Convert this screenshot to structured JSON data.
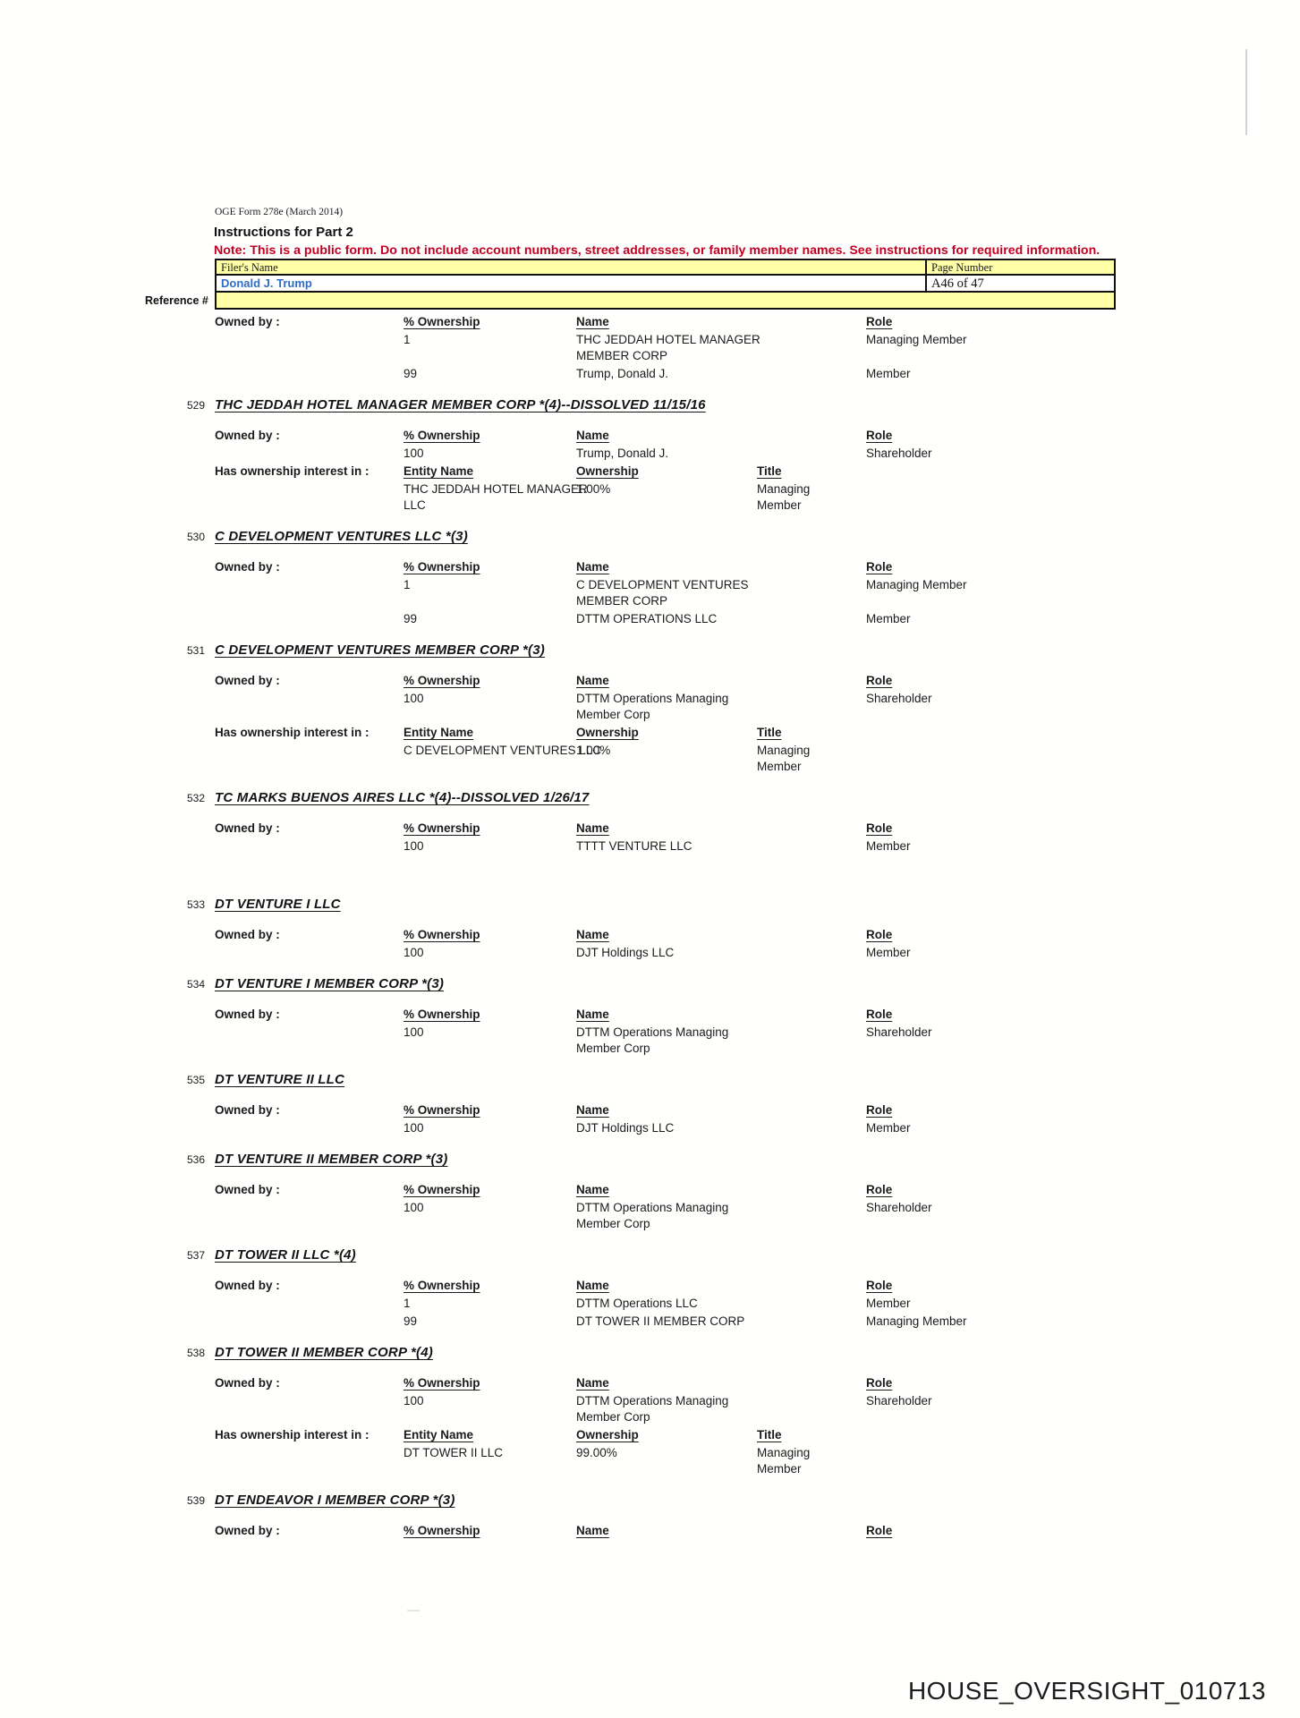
{
  "header": {
    "form_line": "OGE Form 278e (March 2014)",
    "instructions_line": "Instructions for Part 2",
    "note_line": "Note: This is a public form. Do not include account numbers, street addresses, or family member names.  See instructions for required information.",
    "filer_label": "Filer's Name",
    "filer_name": "Donald J. Trump",
    "page_label": "Page Number",
    "page_value": "A46 of 47",
    "reference_label": "Reference #"
  },
  "labels": {
    "owned_by": "Owned by :",
    "has_ownership": "Has ownership interest in :",
    "pct_ownership": "% Ownership",
    "name": "Name",
    "role": "Role",
    "entity_name": "Entity Name",
    "ownership": "Ownership",
    "title": "Title"
  },
  "colors": {
    "highlight_yellow": "#ffffa8",
    "filer_blue": "#2e6dc6",
    "note_red": "#c20023"
  },
  "sections": [
    {
      "number": "",
      "title": "",
      "owned_by": [
        {
          "pct": "1",
          "name": "THC JEDDAH HOTEL MANAGER\nMEMBER CORP",
          "role": "Managing Member"
        },
        {
          "pct": "99",
          "name": "Trump, Donald J.",
          "role": "Member"
        }
      ]
    },
    {
      "number": "529",
      "title": "THC JEDDAH HOTEL MANAGER MEMBER CORP *(4)--DISSOLVED 11/15/16",
      "owned_by": [
        {
          "pct": "100",
          "name": "Trump, Donald J.",
          "role": "Shareholder"
        }
      ],
      "has_ownership": {
        "entity": "THC JEDDAH HOTEL MANAGER\nLLC",
        "ownership": "1.00%",
        "title": "Managing\nMember"
      }
    },
    {
      "number": "530",
      "title": "C DEVELOPMENT VENTURES LLC *(3)",
      "owned_by": [
        {
          "pct": "1",
          "name": "C DEVELOPMENT VENTURES\nMEMBER CORP",
          "role": "Managing Member"
        },
        {
          "pct": "99",
          "name": "DTTM OPERATIONS LLC",
          "role": "Member"
        }
      ]
    },
    {
      "number": "531",
      "title": "C DEVELOPMENT VENTURES MEMBER CORP *(3)",
      "owned_by": [
        {
          "pct": "100",
          "name": "DTTM Operations Managing\nMember Corp",
          "role": "Shareholder"
        }
      ],
      "has_ownership": {
        "entity": "C DEVELOPMENT VENTURES LLC",
        "ownership": "1.00%",
        "title": "Managing\nMember"
      }
    },
    {
      "number": "532",
      "title": "TC MARKS BUENOS AIRES LLC *(4)--DISSOLVED 1/26/17",
      "extra_gap": true,
      "owned_by": [
        {
          "pct": "100",
          "name": "TTTT VENTURE LLC",
          "role": "Member"
        }
      ]
    },
    {
      "number": "533",
      "title": "DT VENTURE I LLC",
      "owned_by": [
        {
          "pct": "100",
          "name": "DJT Holdings LLC",
          "role": "Member"
        }
      ]
    },
    {
      "number": "534",
      "title": "DT VENTURE I MEMBER CORP *(3)",
      "owned_by": [
        {
          "pct": "100",
          "name": "DTTM Operations Managing\nMember Corp",
          "role": "Shareholder"
        }
      ]
    },
    {
      "number": "535",
      "title": "DT VENTURE II LLC",
      "owned_by": [
        {
          "pct": "100",
          "name": "DJT Holdings LLC",
          "role": "Member"
        }
      ]
    },
    {
      "number": "536",
      "title": "DT VENTURE II MEMBER CORP *(3)",
      "owned_by": [
        {
          "pct": "100",
          "name": "DTTM Operations Managing\nMember Corp",
          "role": "Shareholder"
        }
      ]
    },
    {
      "number": "537",
      "title": "DT TOWER II LLC *(4)",
      "owned_by": [
        {
          "pct": "1",
          "name": "DTTM Operations LLC",
          "role": "Member"
        },
        {
          "pct": "99",
          "name": "DT TOWER II MEMBER CORP",
          "role": "Managing Member"
        }
      ]
    },
    {
      "number": "538",
      "title": "DT TOWER II MEMBER CORP *(4)",
      "owned_by": [
        {
          "pct": "100",
          "name": "DTTM Operations Managing\nMember Corp",
          "role": "Shareholder"
        }
      ],
      "has_ownership": {
        "entity": "DT TOWER II LLC",
        "ownership": "99.00%",
        "title": "Managing\nMember"
      }
    },
    {
      "number": "539",
      "title": "DT ENDEAVOR I MEMBER CORP *(3)",
      "owned_by": []
    }
  ],
  "footer": {
    "doc_id": "HOUSE_OVERSIGHT_010713"
  }
}
